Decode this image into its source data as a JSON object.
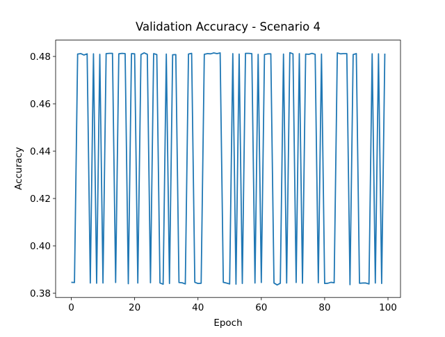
{
  "chart_data": {
    "type": "line",
    "title": "Validation Accuracy - Scenario 4",
    "x_label": "Epoch",
    "y_label": "Accuracy",
    "color": "#1f77b4",
    "x": [
      0,
      1,
      2,
      3,
      4,
      5,
      6,
      7,
      8,
      9,
      10,
      11,
      12,
      13,
      14,
      15,
      16,
      17,
      18,
      19,
      20,
      21,
      22,
      23,
      24,
      25,
      26,
      27,
      28,
      29,
      30,
      31,
      32,
      33,
      34,
      35,
      36,
      37,
      38,
      39,
      40,
      41,
      42,
      43,
      44,
      45,
      46,
      47,
      48,
      49,
      50,
      51,
      52,
      53,
      54,
      55,
      56,
      57,
      58,
      59,
      60,
      61,
      62,
      63,
      64,
      65,
      66,
      67,
      68,
      69,
      70,
      71,
      72,
      73,
      74,
      75,
      76,
      77,
      78,
      79,
      80,
      81,
      82,
      83,
      84,
      85,
      86,
      87,
      88,
      89,
      90,
      91,
      92,
      93,
      94,
      95,
      96,
      97,
      98,
      99
    ],
    "values": [
      0.3846,
      0.3845,
      0.481,
      0.4812,
      0.4806,
      0.4811,
      0.3843,
      0.4811,
      0.3842,
      0.4809,
      0.3843,
      0.4812,
      0.4813,
      0.4813,
      0.3845,
      0.4811,
      0.4813,
      0.4812,
      0.384,
      0.4812,
      0.4811,
      0.3843,
      0.4808,
      0.4815,
      0.4809,
      0.3844,
      0.4812,
      0.4808,
      0.3843,
      0.3838,
      0.481,
      0.3841,
      0.4807,
      0.4808,
      0.3845,
      0.3844,
      0.3839,
      0.481,
      0.4813,
      0.3846,
      0.3841,
      0.3842,
      0.4809,
      0.4812,
      0.4811,
      0.4815,
      0.4812,
      0.4815,
      0.3846,
      0.3843,
      0.3839,
      0.4812,
      0.3838,
      0.481,
      0.3841,
      0.4813,
      0.4813,
      0.4812,
      0.3843,
      0.4809,
      0.3845,
      0.4808,
      0.4811,
      0.4811,
      0.3843,
      0.3835,
      0.3842,
      0.481,
      0.3843,
      0.4816,
      0.4811,
      0.3845,
      0.4812,
      0.3842,
      0.481,
      0.4809,
      0.4813,
      0.4809,
      0.3844,
      0.481,
      0.3841,
      0.3842,
      0.3846,
      0.3844,
      0.4815,
      0.4811,
      0.4812,
      0.4812,
      0.3836,
      0.4808,
      0.4812,
      0.3842,
      0.3843,
      0.3843,
      0.3839,
      0.4811,
      0.3843,
      0.4811,
      0.3841,
      0.4812
    ],
    "xlim": [
      -4.95,
      103.95
    ],
    "ylim": [
      0.3782,
      0.4869
    ],
    "xticks": [
      0,
      20,
      40,
      60,
      80,
      100
    ],
    "yticks": [
      0.38,
      {
        "value": 0.4,
        "label": "0.40"
      },
      0.42,
      0.44,
      0.46,
      0.48
    ]
  }
}
